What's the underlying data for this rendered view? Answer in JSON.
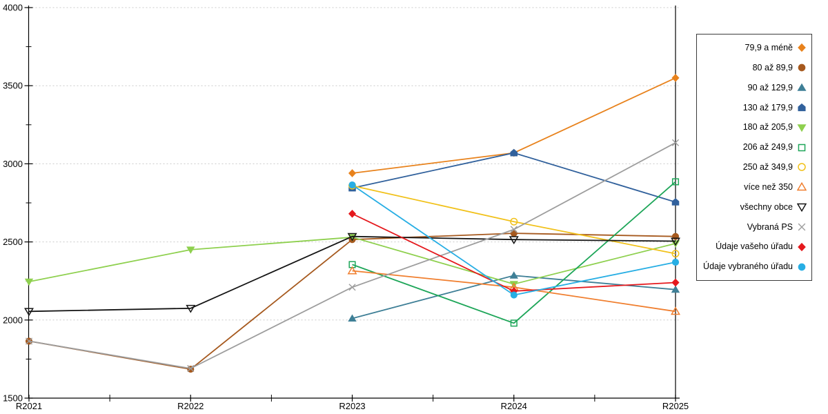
{
  "chart_data": {
    "type": "line",
    "title": "",
    "x_categories": [
      "R2021",
      "R2022",
      "R2023",
      "R2024",
      "R2025"
    ],
    "y_ticks": [
      4000,
      3500,
      3000,
      2500,
      2000,
      1500
    ],
    "ylim": [
      1500,
      4000
    ],
    "grid": {
      "horizontal": true,
      "style": "dashed",
      "color": "#c9c9c9"
    },
    "legend_position": "right",
    "reference_line_x": "R2025",
    "axis_color": "#000000",
    "series": [
      {
        "name": "79,9 a méně",
        "marker": "diamond",
        "fill": "solid",
        "color": "#E8821C",
        "values": [
          null,
          null,
          2940,
          3070,
          3550
        ]
      },
      {
        "name": "80 až 89,9",
        "marker": "circle",
        "fill": "solid",
        "color": "#A6591E",
        "values": [
          1865,
          1685,
          2515,
          2555,
          2535
        ]
      },
      {
        "name": "90 až 129,9",
        "marker": "triangle-up",
        "fill": "solid",
        "color": "#3E7F96",
        "values": [
          null,
          null,
          2010,
          2285,
          2195
        ]
      },
      {
        "name": "130 až 179,9",
        "marker": "pentagon",
        "fill": "solid",
        "color": "#31619C",
        "values": [
          null,
          null,
          2845,
          3070,
          2755
        ]
      },
      {
        "name": "180 až 205,9",
        "marker": "triangle-down",
        "fill": "solid",
        "color": "#8ED04E",
        "values": [
          2245,
          2450,
          2530,
          2230,
          2490
        ]
      },
      {
        "name": "206 až 249,9",
        "marker": "square",
        "fill": "open",
        "color": "#1EA659",
        "values": [
          null,
          null,
          2355,
          1980,
          2885
        ]
      },
      {
        "name": "250 až 349,9",
        "marker": "circle",
        "fill": "open",
        "color": "#F1C119",
        "values": [
          null,
          null,
          2860,
          2630,
          2425
        ]
      },
      {
        "name": "více než 350",
        "marker": "triangle-up",
        "fill": "open",
        "color": "#F07E2E",
        "values": [
          null,
          null,
          2315,
          2210,
          2055
        ]
      },
      {
        "name": "všechny obce",
        "marker": "triangle-down",
        "fill": "open",
        "color": "#141414",
        "values": [
          2055,
          2075,
          2535,
          2515,
          2505
        ]
      },
      {
        "name": "Vybraná PS",
        "marker": "x",
        "fill": "line",
        "color": "#9D9D9D",
        "values": [
          1865,
          1690,
          2210,
          2580,
          3135
        ]
      },
      {
        "name": "Údaje vašeho úřadu",
        "marker": "diamond",
        "fill": "solid",
        "color": "#E5191D",
        "values": [
          null,
          null,
          2680,
          2185,
          2240
        ]
      },
      {
        "name": "Údaje vybraného úřadu",
        "marker": "circle",
        "fill": "solid",
        "color": "#27AEE4",
        "values": [
          null,
          null,
          2865,
          2160,
          2370
        ]
      }
    ]
  }
}
